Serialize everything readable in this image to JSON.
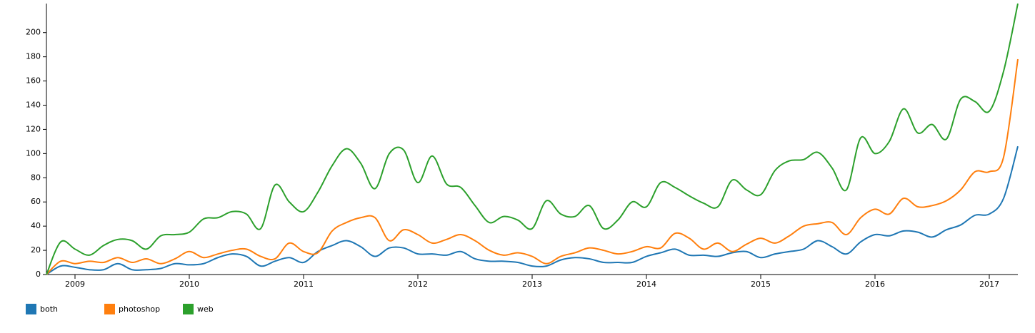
{
  "chart_data": {
    "type": "line",
    "x": [
      2008.75,
      2008.875,
      2009,
      2009.125,
      2009.25,
      2009.375,
      2009.5,
      2009.625,
      2009.75,
      2009.875,
      2010,
      2010.125,
      2010.25,
      2010.375,
      2010.5,
      2010.625,
      2010.75,
      2010.875,
      2011,
      2011.125,
      2011.25,
      2011.375,
      2011.5,
      2011.625,
      2011.75,
      2011.875,
      2012,
      2012.125,
      2012.25,
      2012.375,
      2012.5,
      2012.625,
      2012.75,
      2012.875,
      2013,
      2013.125,
      2013.25,
      2013.375,
      2013.5,
      2013.625,
      2013.75,
      2013.875,
      2014,
      2014.125,
      2014.25,
      2014.375,
      2014.5,
      2014.625,
      2014.75,
      2014.875,
      2015,
      2015.125,
      2015.25,
      2015.375,
      2015.5,
      2015.625,
      2015.75,
      2015.875,
      2016,
      2016.125,
      2016.25,
      2016.375,
      2016.5,
      2016.625,
      2016.75,
      2016.875,
      2017,
      2017.125,
      2017.25
    ],
    "series": [
      {
        "name": "both",
        "color": "#1f77b4",
        "values": [
          0,
          7,
          6,
          4,
          4,
          9,
          4,
          4,
          5,
          9,
          8,
          9,
          14,
          17,
          15,
          7,
          11,
          14,
          10,
          19,
          24,
          28,
          23,
          15,
          22,
          22,
          17,
          17,
          16,
          19,
          13,
          11,
          11,
          10,
          7,
          7,
          12,
          14,
          13,
          10,
          10,
          10,
          15,
          18,
          21,
          16,
          16,
          15,
          18,
          19,
          14,
          17,
          19,
          21,
          28,
          23,
          17,
          27,
          33,
          32,
          36,
          35,
          31,
          37,
          41,
          49,
          50,
          63,
          106
        ]
      },
      {
        "name": "photoshop",
        "color": "#ff7f0e",
        "values": [
          0,
          11,
          9,
          11,
          10,
          14,
          10,
          13,
          9,
          13,
          19,
          14,
          17,
          20,
          21,
          15,
          13,
          26,
          19,
          18,
          36,
          43,
          47,
          47,
          28,
          37,
          33,
          26,
          29,
          33,
          28,
          20,
          16,
          18,
          15,
          9,
          15,
          18,
          22,
          20,
          17,
          19,
          23,
          22,
          34,
          30,
          21,
          26,
          19,
          25,
          30,
          26,
          32,
          40,
          42,
          43,
          33,
          47,
          54,
          50,
          63,
          56,
          57,
          61,
          70,
          85,
          85,
          97,
          178
        ]
      },
      {
        "name": "web",
        "color": "#2ca02c",
        "values": [
          0,
          27,
          21,
          16,
          24,
          29,
          28,
          21,
          32,
          33,
          35,
          46,
          47,
          52,
          50,
          38,
          74,
          60,
          52,
          68,
          90,
          104,
          92,
          71,
          100,
          103,
          76,
          98,
          75,
          72,
          57,
          43,
          48,
          45,
          38,
          61,
          50,
          48,
          57,
          38,
          45,
          60,
          56,
          76,
          72,
          65,
          59,
          56,
          78,
          70,
          66,
          86,
          94,
          95,
          101,
          88,
          70,
          113,
          100,
          110,
          137,
          117,
          124,
          112,
          145,
          143,
          135,
          168,
          224
        ]
      }
    ],
    "xlim": [
      2008.75,
      2017.25
    ],
    "xticks": [
      2009,
      2010,
      2011,
      2012,
      2013,
      2014,
      2015,
      2016,
      2017
    ],
    "ylim": [
      0,
      224
    ],
    "yticks": [
      0,
      20,
      40,
      60,
      80,
      100,
      120,
      140,
      160,
      180,
      200
    ]
  }
}
